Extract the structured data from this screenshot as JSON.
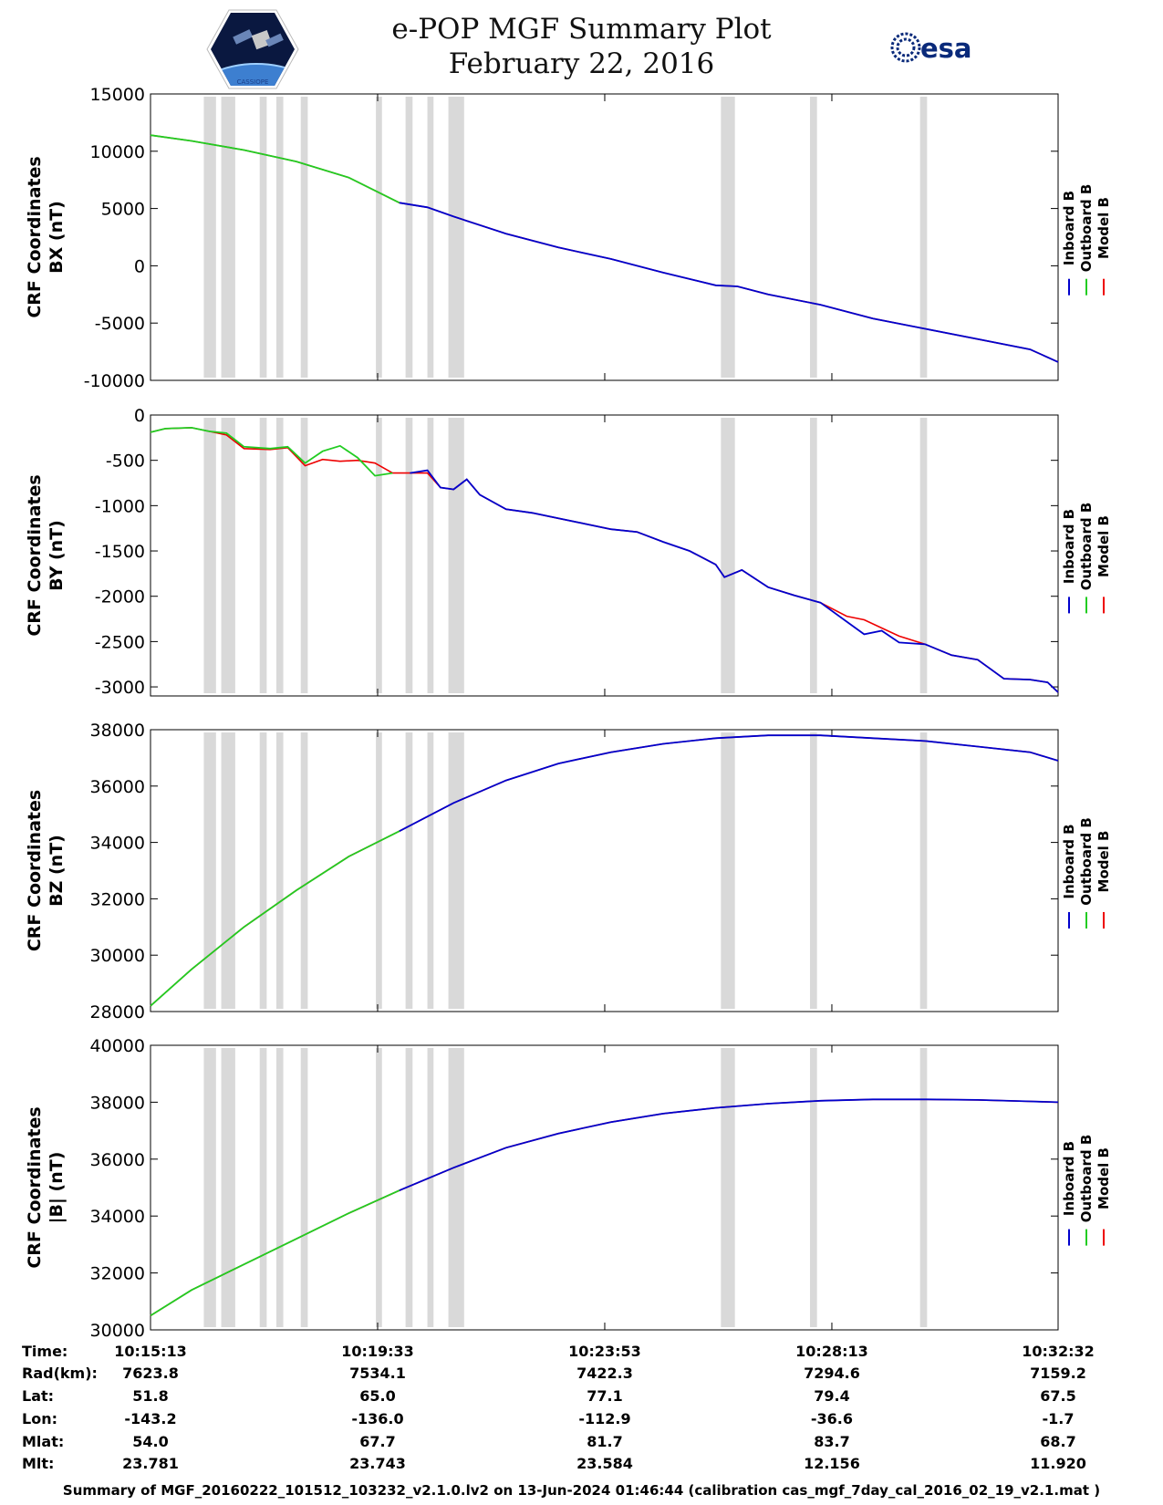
{
  "header": {
    "title": "e-POP MGF Summary Plot",
    "date": "February 22, 2016",
    "logo_left_text": "CASSIOPE",
    "logo_right_text": "esa"
  },
  "footer": {
    "text": "Summary of MGF_20160222_101512_103232_v2.1.0.lv2 on 13-Jun-2024 01:46:44 (calibration cas_mgf_7day_cal_2016_02_19_v2.1.mat )"
  },
  "colors": {
    "inboard": "#0000cc",
    "outboard": "#22cc22",
    "model": "#ee0000",
    "gap": "#d9d9d9"
  },
  "chart_data": {
    "type": "line",
    "x_unit": "time",
    "xlim": [
      "10:15:13",
      "10:32:32"
    ],
    "time_ticks": [
      "10:15:13",
      "10:19:33",
      "10:23:53",
      "10:28:13",
      "10:32:32"
    ],
    "legend": [
      "Inboard B",
      "Outboard B",
      "Model B"
    ],
    "legend_placement": "right",
    "outboard_to_inboard_switch": "10:19:58",
    "data_gaps": [
      [
        "10:16:14",
        "10:16:28"
      ],
      [
        "10:16:34",
        "10:16:50"
      ],
      [
        "10:17:18",
        "10:17:26"
      ],
      [
        "10:17:37",
        "10:17:45"
      ],
      [
        "10:18:05",
        "10:18:13"
      ],
      [
        "10:19:31",
        "10:19:38"
      ],
      [
        "10:20:05",
        "10:20:13"
      ],
      [
        "10:20:30",
        "10:20:37"
      ],
      [
        "10:20:54",
        "10:21:12"
      ],
      [
        "10:26:06",
        "10:26:22"
      ],
      [
        "10:27:48",
        "10:27:56"
      ],
      [
        "10:29:54",
        "10:30:02"
      ]
    ],
    "panels": [
      {
        "ylabel": [
          "CRF Coordinates",
          "BX (nT)"
        ],
        "ylim": [
          -10000,
          15000
        ],
        "yticks": [
          15000,
          10000,
          5000,
          0,
          -5000,
          -10000
        ],
        "x": [
          "10:15:13",
          "10:16:00",
          "10:17:00",
          "10:18:00",
          "10:19:00",
          "10:19:58",
          "10:20:30",
          "10:21:00",
          "10:22:00",
          "10:23:00",
          "10:24:00",
          "10:25:00",
          "10:26:00",
          "10:26:25",
          "10:27:00",
          "10:28:00",
          "10:29:00",
          "10:30:00",
          "10:31:00",
          "10:32:00",
          "10:32:32"
        ],
        "series": [
          {
            "values": [
              11400,
              10900,
              10100,
              9100,
              7700,
              5500,
              5100,
              4300,
              2800,
              1600,
              600,
              -600,
              -1700,
              -1800,
              -2500,
              -3400,
              -4600,
              -5500,
              -6400,
              -7300,
              -8400
            ]
          }
        ]
      },
      {
        "ylabel": [
          "CRF Coordinates",
          "BY (nT)"
        ],
        "ylim": [
          -3100,
          0
        ],
        "yticks": [
          0,
          -500,
          -1000,
          -1500,
          -2000,
          -2500,
          -3000
        ],
        "x": [
          "10:15:13",
          "10:15:30",
          "10:16:00",
          "10:16:20",
          "10:16:40",
          "10:17:00",
          "10:17:30",
          "10:17:50",
          "10:18:10",
          "10:18:30",
          "10:18:50",
          "10:19:10",
          "10:19:30",
          "10:19:50",
          "10:20:10",
          "10:20:30",
          "10:20:45",
          "10:21:00",
          "10:21:15",
          "10:21:30",
          "10:22:00",
          "10:22:30",
          "10:23:00",
          "10:23:30",
          "10:24:00",
          "10:24:30",
          "10:25:00",
          "10:25:30",
          "10:26:00",
          "10:26:10",
          "10:26:30",
          "10:27:00",
          "10:27:30",
          "10:28:00",
          "10:28:30",
          "10:28:50",
          "10:29:10",
          "10:29:30",
          "10:30:00",
          "10:30:30",
          "10:31:00",
          "10:31:30",
          "10:32:00",
          "10:32:20",
          "10:32:32"
        ],
        "series": [
          {
            "values": [
              -190,
              -150,
              -140,
              -180,
              -220,
              -370,
              -380,
              -360,
              -560,
              -490,
              -510,
              -500,
              -530,
              -640,
              -640,
              -640,
              -800,
              -820,
              -710,
              -880,
              -1040,
              -1080,
              -1140,
              -1200,
              -1260,
              -1290,
              -1400,
              -1500,
              -1650,
              -1790,
              -1710,
              -1900,
              -1990,
              -2070,
              -2220,
              -2260,
              -2350,
              -2440,
              -2530,
              -2650,
              -2700,
              -2910,
              -2920,
              -2950,
              -3060
            ]
          },
          {
            "values": [
              -190,
              -150,
              -140,
              -180,
              -200,
              -350,
              -370,
              -350,
              -530,
              -400,
              -340,
              -470,
              -670,
              -640,
              -640,
              -610,
              -800,
              -820,
              -710,
              -880,
              -1040,
              -1080,
              -1140,
              -1200,
              -1260,
              -1290,
              -1400,
              -1500,
              -1650,
              -1790,
              -1710,
              -1900,
              -1990,
              -2070,
              -2280,
              -2420,
              -2380,
              -2510,
              -2530,
              -2650,
              -2700,
              -2910,
              -2920,
              -2950,
              -3060
            ]
          }
        ]
      },
      {
        "ylabel": [
          "CRF Coordinates",
          "BZ (nT)"
        ],
        "ylim": [
          28000,
          38000
        ],
        "yticks": [
          38000,
          36000,
          34000,
          32000,
          30000,
          28000
        ],
        "x": [
          "10:15:13",
          "10:16:00",
          "10:17:00",
          "10:18:00",
          "10:19:00",
          "10:19:58",
          "10:21:00",
          "10:22:00",
          "10:23:00",
          "10:24:00",
          "10:25:00",
          "10:26:00",
          "10:27:00",
          "10:28:00",
          "10:29:00",
          "10:30:00",
          "10:31:00",
          "10:32:00",
          "10:32:32"
        ],
        "series": [
          {
            "values": [
              28200,
              29500,
              31000,
              32300,
              33500,
              34400,
              35400,
              36200,
              36800,
              37200,
              37500,
              37700,
              37800,
              37800,
              37700,
              37600,
              37400,
              37200,
              36900
            ]
          }
        ]
      },
      {
        "ylabel": [
          "CRF Coordinates",
          "|B| (nT)"
        ],
        "ylim": [
          30000,
          40000
        ],
        "yticks": [
          40000,
          38000,
          36000,
          34000,
          32000,
          30000
        ],
        "x": [
          "10:15:13",
          "10:16:00",
          "10:17:00",
          "10:18:00",
          "10:19:00",
          "10:19:58",
          "10:21:00",
          "10:22:00",
          "10:23:00",
          "10:24:00",
          "10:25:00",
          "10:26:00",
          "10:27:00",
          "10:28:00",
          "10:29:00",
          "10:30:00",
          "10:31:00",
          "10:32:00",
          "10:32:32"
        ],
        "series": [
          {
            "values": [
              30500,
              31400,
              32300,
              33200,
              34100,
              34900,
              35700,
              36400,
              36900,
              37300,
              37600,
              37800,
              37950,
              38050,
              38100,
              38100,
              38080,
              38030,
              38000
            ]
          }
        ]
      }
    ]
  },
  "ephemeris": {
    "labels": [
      "Time:",
      "Rad(km):",
      "Lat:",
      "Lon:",
      "Mlat:",
      "Mlt:"
    ],
    "columns": [
      [
        "10:15:13",
        "7623.8",
        "51.8",
        "-143.2",
        "54.0",
        "23.781"
      ],
      [
        "10:19:33",
        "7534.1",
        "65.0",
        "-136.0",
        "67.7",
        "23.743"
      ],
      [
        "10:23:53",
        "7422.3",
        "77.1",
        "-112.9",
        "81.7",
        "23.584"
      ],
      [
        "10:28:13",
        "7294.6",
        "79.4",
        "-36.6",
        "83.7",
        "12.156"
      ],
      [
        "10:32:32",
        "7159.2",
        "67.5",
        "-1.7",
        "68.7",
        "11.920"
      ]
    ]
  }
}
